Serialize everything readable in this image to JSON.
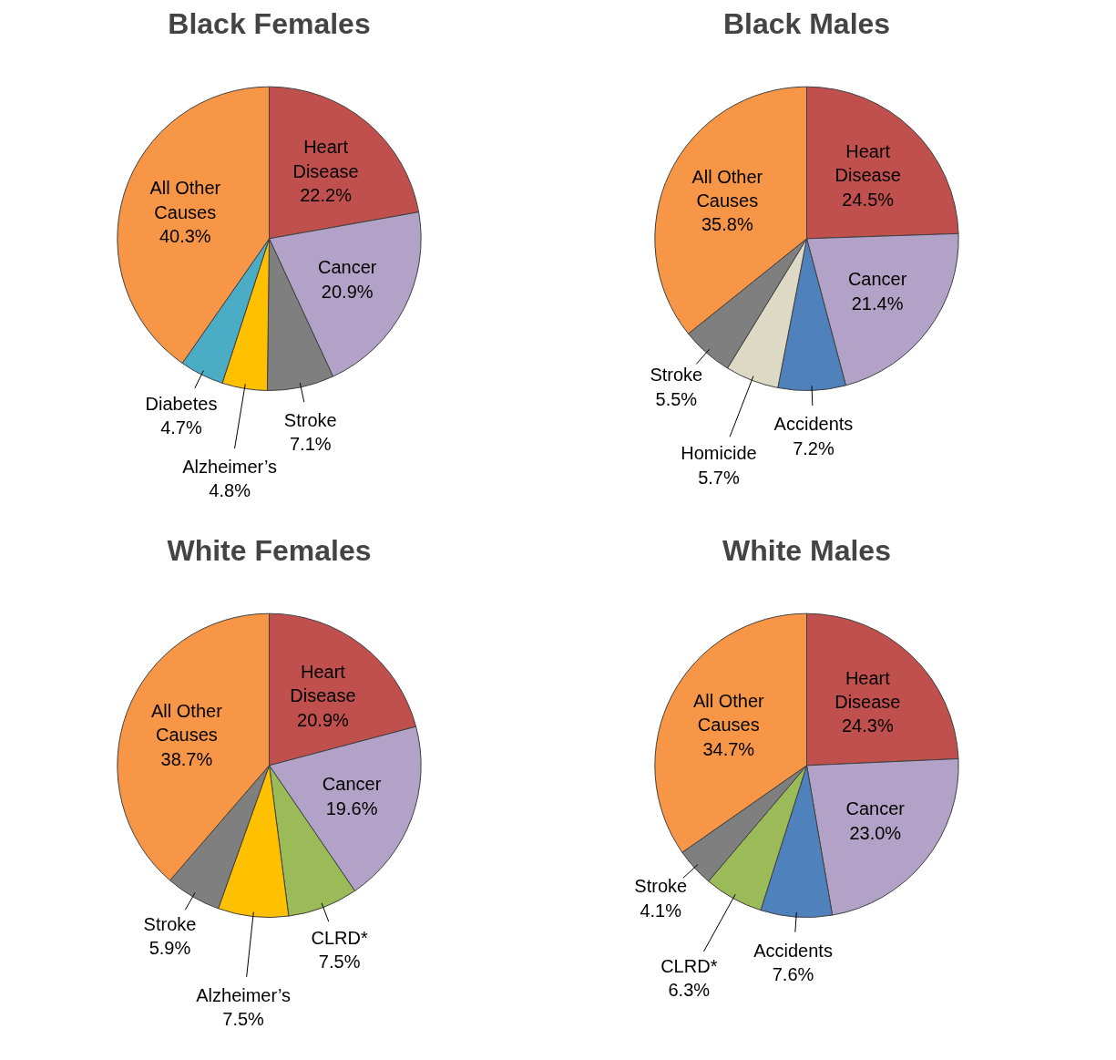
{
  "chart_data": [
    {
      "type": "pie",
      "title": "Black Females",
      "categories": [
        "Heart Disease",
        "Cancer",
        "Stroke",
        "Alzheimer’s",
        "Diabetes",
        "All Other Causes"
      ],
      "values": [
        22.2,
        20.9,
        7.1,
        4.8,
        4.7,
        40.3
      ],
      "colors": [
        "#c0504d",
        "#b2a2c7",
        "#7f7f7f",
        "#ffc000",
        "#4bacc6",
        "#f79646"
      ],
      "value_labels": [
        "22.2%",
        "20.9%",
        "7.1%",
        "4.8%",
        "4.7%",
        "40.3%"
      ]
    },
    {
      "type": "pie",
      "title": "Black Males",
      "categories": [
        "Heart Disease",
        "Cancer",
        "Accidents",
        "Homicide",
        "Stroke",
        "All Other Causes"
      ],
      "values": [
        24.5,
        21.4,
        7.2,
        5.7,
        5.5,
        35.8
      ],
      "colors": [
        "#c0504d",
        "#b2a2c7",
        "#4f81bd",
        "#ddd9c4",
        "#7f7f7f",
        "#f79646"
      ],
      "value_labels": [
        "24.5%",
        "21.4%",
        "7.2%",
        "5.7%",
        "5.5%",
        "35.8%"
      ]
    },
    {
      "type": "pie",
      "title": "White Females",
      "categories": [
        "Heart Disease",
        "Cancer",
        "CLRD*",
        "Alzheimer’s",
        "Stroke",
        "All Other Causes"
      ],
      "values": [
        20.9,
        19.6,
        7.5,
        7.5,
        5.9,
        38.7
      ],
      "colors": [
        "#c0504d",
        "#b2a2c7",
        "#9bbb59",
        "#ffc000",
        "#7f7f7f",
        "#f79646"
      ],
      "value_labels": [
        "20.9%",
        "19.6%",
        "7.5%",
        "7.5%",
        "5.9%",
        "38.7%"
      ]
    },
    {
      "type": "pie",
      "title": "White Males",
      "categories": [
        "Heart Disease",
        "Cancer",
        "Accidents",
        "CLRD*",
        "Stroke",
        "All Other Causes"
      ],
      "values": [
        24.3,
        23.0,
        7.6,
        6.3,
        4.1,
        34.7
      ],
      "colors": [
        "#c0504d",
        "#b2a2c7",
        "#4f81bd",
        "#9bbb59",
        "#7f7f7f",
        "#f79646"
      ],
      "value_labels": [
        "24.3%",
        "23.0%",
        "7.6%",
        "6.3%",
        "4.1%",
        "34.7%"
      ]
    }
  ]
}
